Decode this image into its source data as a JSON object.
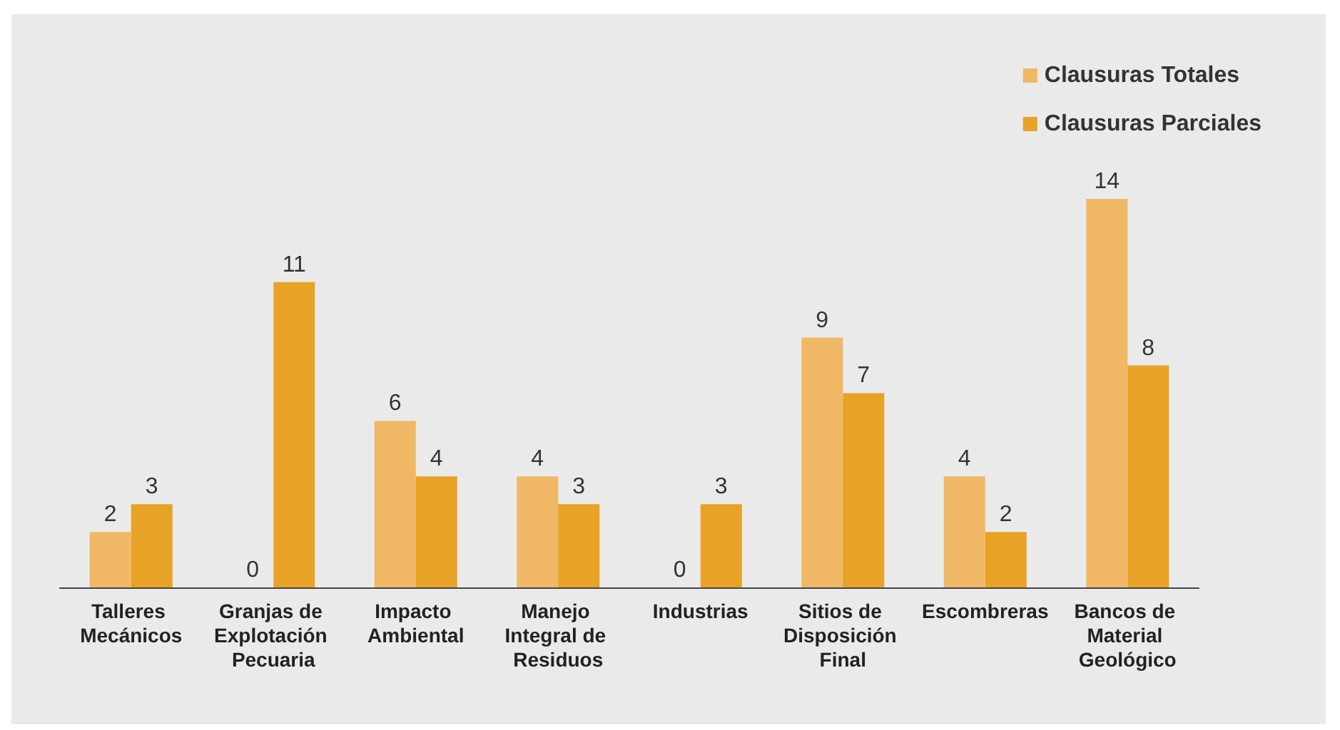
{
  "chart_data": {
    "type": "bar",
    "categories": [
      "Talleres Mecánicos",
      "Granjas de Explotación Pecuaria",
      "Impacto Ambiental",
      "Manejo Integral de Residuos",
      "Industrias",
      "Sitios de Disposición Final",
      "Escombreras",
      "Bancos de Material Geológico"
    ],
    "series": [
      {
        "name": "Clausuras Totales",
        "color": "#f0b866",
        "values": [
          2,
          0,
          6,
          4,
          0,
          9,
          4,
          14
        ]
      },
      {
        "name": "Clausuras Parciales",
        "color": "#e8a226",
        "values": [
          3,
          11,
          4,
          3,
          3,
          7,
          2,
          8
        ]
      }
    ],
    "data_labels": true,
    "legend": "top right"
  }
}
